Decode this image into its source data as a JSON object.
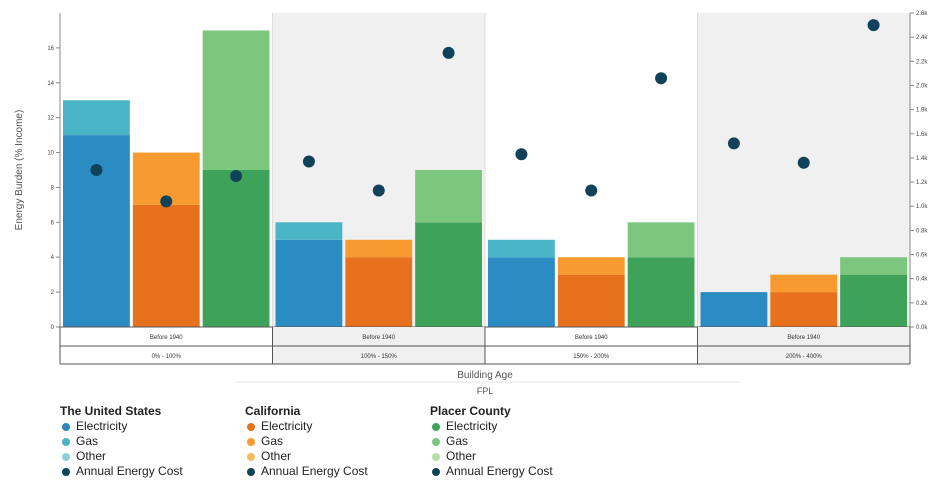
{
  "chart_data": {
    "type": "bar",
    "title": "",
    "ylabel": "Energy Burden (% Income)",
    "xlabel": "Building Age",
    "xlabel2": "FPL",
    "ylim": [
      0,
      18
    ],
    "yticks": [
      0,
      2,
      4,
      6,
      8,
      10,
      12,
      14,
      16
    ],
    "y2lim": [
      0,
      2.6
    ],
    "y2ticks": [
      "0.0k",
      "0.2k",
      "0.4k",
      "0.6k",
      "0.8k",
      "1.0k",
      "1.2k",
      "1.4k",
      "1.6k",
      "1.8k",
      "2.0k",
      "2.2k",
      "2.4k",
      "2.6k"
    ],
    "categories": [
      "Before 1940",
      "Before 1940",
      "Before 1940",
      "Before 1940"
    ],
    "fpl_groups": [
      "0% - 100%",
      "100% - 150%",
      "150% - 200%",
      "200% - 400%"
    ],
    "stack_keys": [
      "Electricity",
      "Gas",
      "Other"
    ],
    "series": [
      {
        "name": "The United States",
        "values": [
          [
            11,
            2,
            0
          ],
          [
            5,
            1,
            0
          ],
          [
            4,
            1,
            0
          ],
          [
            2,
            0,
            0
          ]
        ],
        "annual_energy_cost": [
          1.3,
          1.37,
          1.43,
          1.52
        ],
        "colors": [
          "#2b8cc4",
          "#49b5c6",
          "#8ecfdb"
        ]
      },
      {
        "name": "California",
        "values": [
          [
            7,
            3,
            0
          ],
          [
            4,
            1,
            0
          ],
          [
            3,
            1,
            0
          ],
          [
            2,
            1,
            0
          ]
        ],
        "annual_energy_cost": [
          1.04,
          1.13,
          1.13,
          1.36
        ],
        "colors": [
          "#e8711d",
          "#f79a30",
          "#f8c677"
        ]
      },
      {
        "name": "Placer County",
        "values": [
          [
            9,
            8,
            0
          ],
          [
            6,
            3,
            0
          ],
          [
            4,
            2,
            0
          ],
          [
            3,
            1,
            0
          ]
        ],
        "annual_energy_cost": [
          1.25,
          2.27,
          2.06,
          2.5
        ],
        "colors": [
          "#3ea358",
          "#7cc67e",
          "#b6dda8"
        ]
      }
    ],
    "dot_color": "#10425a"
  },
  "legend": [
    {
      "title": "The United States",
      "items": [
        {
          "label": "Electricity",
          "color": "#2e87b8"
        },
        {
          "label": "Gas",
          "color": "#4bb4c3"
        },
        {
          "label": "Other",
          "color": "#8ecfdb"
        },
        {
          "label": "Annual Energy Cost",
          "color": "#10425a"
        }
      ]
    },
    {
      "title": "California",
      "items": [
        {
          "label": "Electricity",
          "color": "#e8711d"
        },
        {
          "label": "Gas",
          "color": "#f79a30"
        },
        {
          "label": "Other",
          "color": "#f4bd5a"
        },
        {
          "label": "Annual Energy Cost",
          "color": "#10425a"
        }
      ]
    },
    {
      "title": "Placer County",
      "items": [
        {
          "label": "Electricity",
          "color": "#3ea358"
        },
        {
          "label": "Gas",
          "color": "#7cc67e"
        },
        {
          "label": "Other",
          "color": "#b6dda8"
        },
        {
          "label": "Annual Energy Cost",
          "color": "#10425a"
        }
      ]
    }
  ]
}
